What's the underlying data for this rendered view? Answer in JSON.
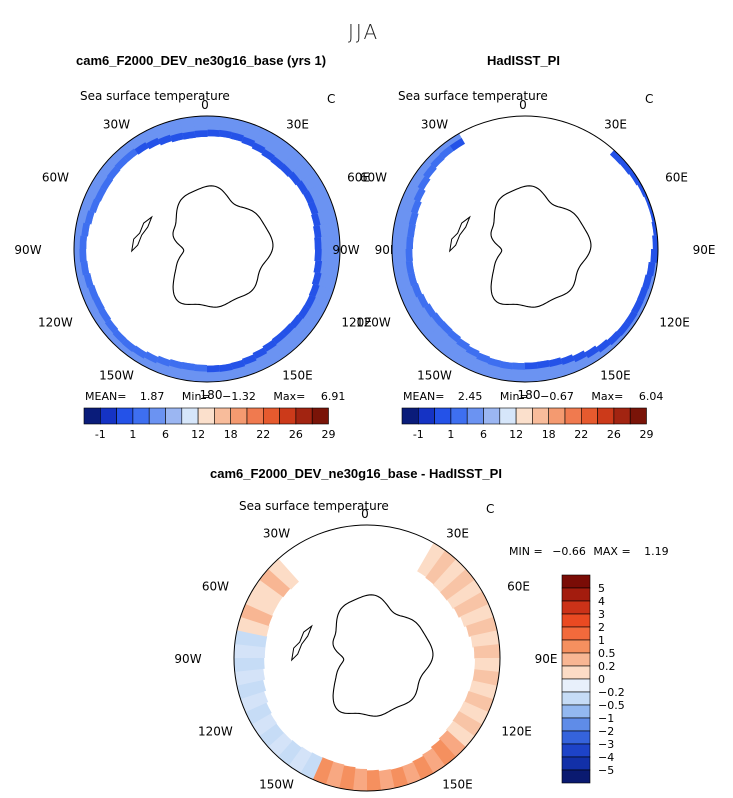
{
  "season_title": "JJA",
  "panels": [
    {
      "title": "cam6_F2000_DEV_ne30g16_base (yrs 1)",
      "variable": "Sea surface temperature",
      "units": "C",
      "stats": {
        "mean_label": "MEAN=",
        "mean": "1.87",
        "min_label": "Min=",
        "min": "−1.32",
        "max_label": "Max=",
        "max": "6.91"
      }
    },
    {
      "title": "HadISST_PI",
      "variable": "Sea surface temperature",
      "units": "C",
      "stats": {
        "mean_label": "MEAN=",
        "mean": "2.45",
        "min_label": "Min=",
        "min": "−0.67",
        "max_label": "Max=",
        "max": "6.04"
      }
    },
    {
      "title": "cam6_F2000_DEV_ne30g16_base - HadISST_PI",
      "variable": "Sea surface temperature",
      "units": "C",
      "minmax": {
        "min_label": "MIN =",
        "min": "−0.66",
        "max_label": "MAX =",
        "max": "1.19"
      }
    }
  ],
  "longitude_labels": [
    "0",
    "30E",
    "60E",
    "90E",
    "120E",
    "150E",
    "180",
    "150W",
    "120W",
    "90W",
    "60W",
    "30W"
  ],
  "chart_data": [
    {
      "type": "heatmap",
      "title": "cam6_F2000_DEV_ne30g16_base (yrs 1)",
      "projection": "south-polar-stereographic",
      "field": "Sea surface temperature (C), JJA",
      "mean": 1.87,
      "min": -1.32,
      "max": 6.91,
      "colorbar": {
        "orientation": "horizontal",
        "tick_labels": [
          "-1",
          "1",
          "6",
          "12",
          "18",
          "22",
          "26",
          "29"
        ],
        "colors": [
          "#0a1c7a",
          "#1533c4",
          "#2452e8",
          "#3e6ff0",
          "#6b93f2",
          "#9bb6f2",
          "#d6e6fa",
          "#fbe0cc",
          "#f8bc9b",
          "#f49a70",
          "#f07a4f",
          "#e65a2e",
          "#cc3a1a",
          "#a22411",
          "#7a1408"
        ]
      }
    },
    {
      "type": "heatmap",
      "title": "HadISST_PI",
      "projection": "south-polar-stereographic",
      "field": "Sea surface temperature (C), JJA",
      "mean": 2.45,
      "min": -0.67,
      "max": 6.04,
      "colorbar": {
        "orientation": "horizontal",
        "tick_labels": [
          "-1",
          "1",
          "6",
          "12",
          "18",
          "22",
          "26",
          "29"
        ],
        "colors": [
          "#0a1c7a",
          "#1533c4",
          "#2452e8",
          "#3e6ff0",
          "#6b93f2",
          "#9bb6f2",
          "#d6e6fa",
          "#fbe0cc",
          "#f8bc9b",
          "#f49a70",
          "#f07a4f",
          "#e65a2e",
          "#cc3a1a",
          "#a22411",
          "#7a1408"
        ]
      }
    },
    {
      "type": "heatmap",
      "title": "cam6_F2000_DEV_ne30g16_base - HadISST_PI",
      "projection": "south-polar-stereographic",
      "field": "Sea surface temperature difference (C), JJA",
      "min": -0.66,
      "max": 1.19,
      "colorbar": {
        "orientation": "vertical",
        "tick_labels": [
          "5",
          "4",
          "3",
          "2",
          "1",
          "0.5",
          "0.2",
          "0",
          "−0.2",
          "−0.5",
          "−1",
          "−2",
          "−3",
          "−4",
          "−5"
        ],
        "colors": [
          "#7a0c06",
          "#a31c0e",
          "#cc3218",
          "#ea4a22",
          "#f26a3c",
          "#f5905f",
          "#f8b693",
          "#fcdcc6",
          "#e8f0fb",
          "#c6dcf6",
          "#93b8f0",
          "#5f8ce8",
          "#3563dc",
          "#1d43c8",
          "#1230a8",
          "#0a1a70"
        ]
      }
    }
  ]
}
